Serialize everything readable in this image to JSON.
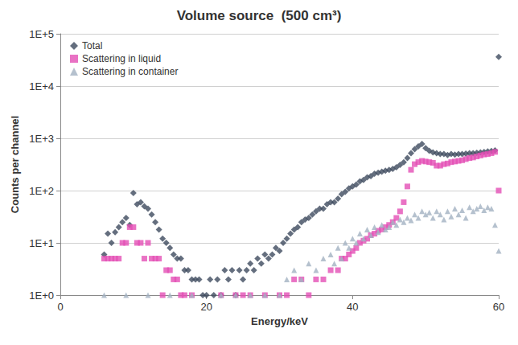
{
  "chart_data": {
    "type": "scatter",
    "title": "Volume source  (500 cm³)",
    "x_label": "Energy/keV",
    "y_label": "Counts per channel",
    "log": "y",
    "grid": true,
    "legend": "upper left",
    "xlim": [
      0,
      60
    ],
    "xticks": [
      0,
      20,
      40,
      60
    ],
    "ylim": [
      1,
      100000
    ],
    "yticks": [
      {
        "value": 1,
        "label": "1E+0"
      },
      {
        "value": 10,
        "label": "1E+1"
      },
      {
        "value": 100,
        "label": "1E+2"
      },
      {
        "value": 1000,
        "label": "1E+3"
      },
      {
        "value": 10000,
        "label": "1E+4"
      },
      {
        "value": 100000,
        "label": "1E+5"
      }
    ],
    "series": [
      {
        "name": "Total",
        "color": "#3d4a5e",
        "marker": "diamond",
        "x": [
          6,
          6.5,
          7,
          7.5,
          8,
          8.5,
          9,
          9.5,
          10,
          10.5,
          11,
          11.5,
          12,
          12.5,
          13,
          13.5,
          14,
          14.5,
          15,
          15.5,
          16,
          16.5,
          17,
          17.5,
          18,
          18.5,
          19,
          19.5,
          20,
          20.5,
          21,
          21.5,
          22,
          22.5,
          23,
          23.5,
          24,
          24.5,
          25,
          25.5,
          26,
          26.5,
          27,
          27.5,
          28,
          28.5,
          29,
          29.5,
          30,
          30.5,
          31,
          31.5,
          32,
          32.5,
          33,
          33.5,
          34,
          34.5,
          35,
          35.5,
          36,
          36.5,
          37,
          37.5,
          38,
          38.5,
          39,
          39.5,
          40,
          40.5,
          41,
          41.5,
          42,
          42.5,
          43,
          43.5,
          44,
          44.5,
          45,
          45.5,
          46,
          46.5,
          47,
          47.5,
          48,
          48.5,
          49,
          49.5,
          50,
          50.5,
          51,
          51.5,
          52,
          52.5,
          53,
          53.5,
          54,
          54.5,
          55,
          55.5,
          56,
          56.5,
          57,
          57.5,
          58,
          58.5,
          59,
          59.5,
          60
        ],
        "values": [
          6,
          15,
          10,
          16,
          20,
          25,
          30,
          22,
          90,
          55,
          60,
          50,
          45,
          35,
          25,
          18,
          12,
          10,
          8,
          6,
          5,
          5,
          3,
          3,
          2,
          2,
          2,
          1,
          1,
          2,
          1,
          2,
          1,
          3,
          2,
          3,
          1,
          3,
          2,
          3,
          4,
          3,
          5,
          4,
          6,
          5,
          6,
          8,
          7,
          10,
          12,
          15,
          18,
          20,
          25,
          28,
          30,
          35,
          40,
          45,
          45,
          55,
          60,
          60,
          70,
          85,
          95,
          110,
          120,
          130,
          150,
          160,
          180,
          190,
          210,
          220,
          230,
          240,
          250,
          260,
          280,
          310,
          350,
          420,
          520,
          620,
          700,
          780,
          650,
          580,
          540,
          520,
          500,
          500,
          480,
          500,
          490,
          500,
          500,
          510,
          520,
          520,
          530,
          540,
          550,
          560,
          570,
          590,
          36000
        ]
      },
      {
        "name": "Scattering in liquid",
        "color": "#e34fb5",
        "marker": "square",
        "x": [
          6,
          6.5,
          7,
          7.5,
          8,
          8.5,
          9,
          9.5,
          10,
          10.5,
          11,
          11.5,
          12,
          12.5,
          13,
          13.5,
          14,
          14.5,
          15,
          15.5,
          16,
          16.5,
          17,
          18,
          22,
          24,
          25,
          26,
          28,
          30,
          31,
          32,
          33,
          34,
          35,
          36,
          37,
          38,
          38.5,
          39,
          39.5,
          40,
          40.5,
          41,
          41.5,
          42,
          42.5,
          43,
          43.5,
          44,
          44.5,
          45,
          45.5,
          46,
          46.5,
          47,
          47.5,
          48,
          48.5,
          49,
          49.5,
          50,
          50.5,
          51,
          51.5,
          52,
          52.5,
          53,
          53.5,
          54,
          54.5,
          55,
          55.5,
          56,
          56.5,
          57,
          57.5,
          58,
          58.5,
          59,
          59.5,
          60
        ],
        "values": [
          5,
          5,
          5,
          5,
          5,
          10,
          10,
          20,
          20,
          10,
          10,
          5,
          10,
          5,
          5,
          5,
          1,
          3,
          3,
          2,
          2,
          1,
          1,
          1,
          1,
          1,
          1,
          1,
          1,
          1,
          1,
          2,
          2,
          1,
          2,
          2,
          3,
          3,
          5,
          5,
          6,
          7,
          8,
          10,
          11,
          12,
          14,
          15,
          17,
          18,
          20,
          22,
          25,
          30,
          40,
          60,
          120,
          250,
          320,
          350,
          370,
          360,
          350,
          340,
          300,
          300,
          320,
          330,
          350,
          360,
          370,
          380,
          400,
          420,
          430,
          450,
          470,
          490,
          500,
          520,
          550,
          100
        ]
      },
      {
        "name": "Scattering in container",
        "color": "#a3b1c2",
        "marker": "triangle",
        "x": [
          6,
          9,
          12,
          15,
          18,
          22,
          24,
          26,
          28,
          30,
          31,
          32,
          33,
          34,
          35,
          36,
          37,
          37.5,
          38,
          38.5,
          39,
          39.5,
          40,
          40.5,
          41,
          41.5,
          42,
          42.5,
          43,
          43.5,
          44,
          44.5,
          45,
          45.5,
          46,
          46.5,
          47,
          47.5,
          48,
          48.5,
          49,
          49.5,
          50,
          50.5,
          51,
          51.5,
          52,
          52.5,
          53,
          53.5,
          54,
          54.5,
          55,
          55.5,
          56,
          56.5,
          57,
          57.5,
          58,
          58.5,
          59,
          59.5,
          60
        ],
        "values": [
          1,
          1,
          1,
          1,
          1,
          1,
          1,
          1,
          1,
          1,
          2,
          3,
          2,
          4,
          3,
          5,
          6,
          4,
          8,
          5,
          10,
          8,
          12,
          10,
          15,
          12,
          18,
          14,
          20,
          16,
          22,
          18,
          20,
          25,
          22,
          28,
          25,
          30,
          27,
          35,
          30,
          40,
          35,
          38,
          30,
          40,
          35,
          28,
          40,
          32,
          45,
          35,
          42,
          30,
          48,
          40,
          45,
          50,
          42,
          48,
          45,
          22,
          7
        ]
      }
    ]
  }
}
